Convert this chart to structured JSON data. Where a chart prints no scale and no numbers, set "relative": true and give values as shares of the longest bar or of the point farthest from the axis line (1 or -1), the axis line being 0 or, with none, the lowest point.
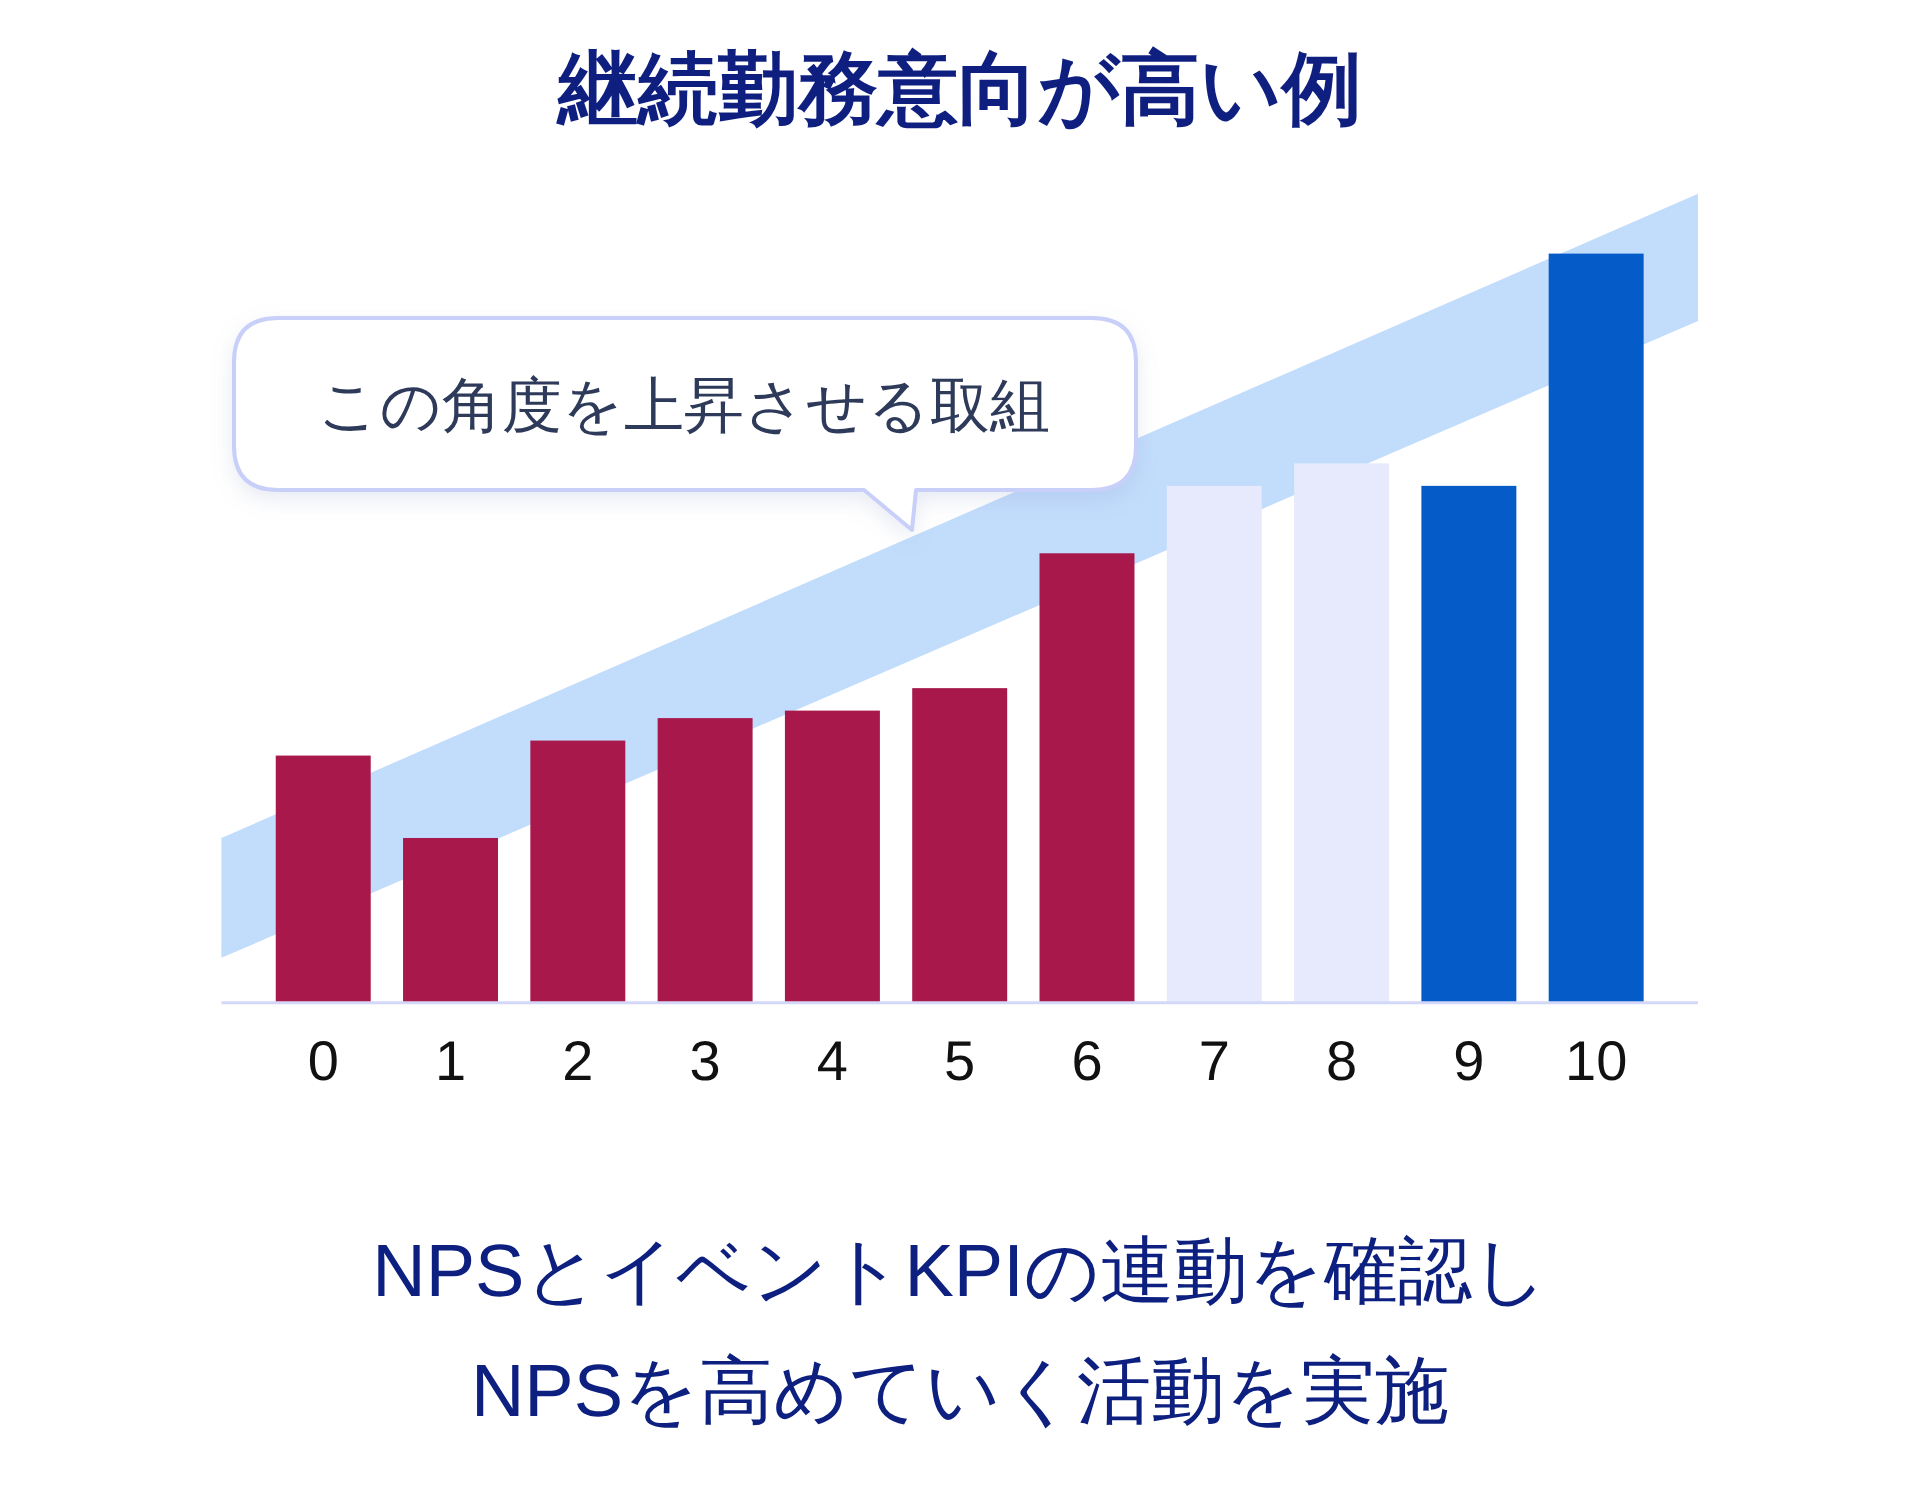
{
  "chart_data": {
    "type": "bar",
    "title": "継続勤務意向が高い例",
    "x": [
      0,
      1,
      2,
      3,
      4,
      5,
      6,
      7,
      8,
      9,
      10
    ],
    "xlim": [
      -0.8,
      10.8
    ],
    "xticks": [
      0,
      1,
      2,
      3,
      4,
      5,
      6,
      7,
      8,
      9,
      10
    ],
    "series": [
      {
        "type": "area",
        "x": [
          -0.8,
          10.8
        ],
        "values": [
          null,
          null
        ],
        "lower": [
          0.06,
          0.91
        ],
        "upper": [
          0.22,
          1.08
        ],
        "color": "#c2dcfc"
      },
      {
        "type": "bar",
        "values": [
          0.33,
          0.22,
          0.35,
          0.38,
          0.39,
          0.42,
          0.6,
          0.69,
          0.72,
          0.69,
          1
        ],
        "colors": [
          "#a8184a",
          "#a8184a",
          "#a8184a",
          "#a8184a",
          "#a8184a",
          "#a8184a",
          "#a8184a",
          "#e6eafc",
          "#e6eafc",
          "#055cc9",
          "#055cc9"
        ]
      }
    ],
    "relative": true,
    "annotations": [
      "この角度を上昇させる取組",
      "NPSとイベントKPIの連動を確認し",
      "NPSを高めていく活動を実施"
    ]
  }
}
